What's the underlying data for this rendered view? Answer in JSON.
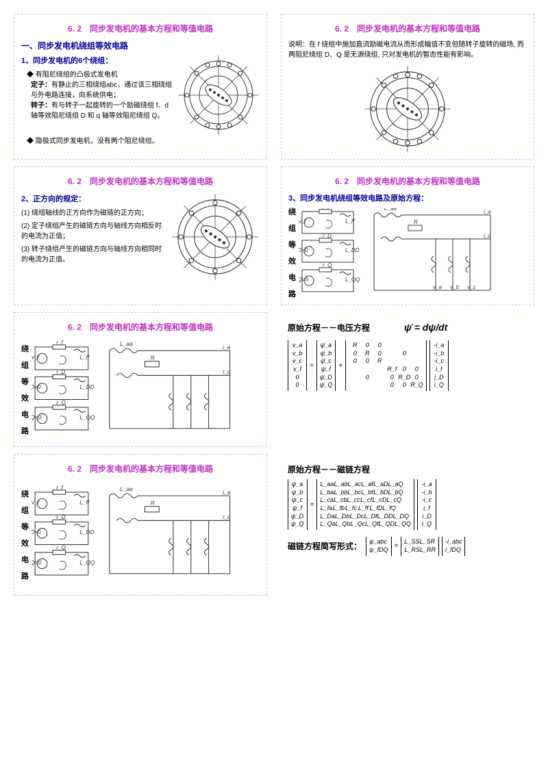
{
  "section_title": "6. 2　同步发电机的基本方程和等值电路",
  "cell1": {
    "heading": "一、同步发电机绕组等效电路",
    "line1": "1、同步发电机的6个绕组：",
    "b1": "◆ 有阻尼绕组的凸极式发电机",
    "stator_label": "定子：",
    "stator_text": "有静止的三相绕组abc，通过该三相绕组与外电路连接，向系统供电；",
    "rotor_label": "转子：",
    "rotor_text": "有与转子一起旋转的一个励磁绕组 f、d 轴等效阻尼绕组 D 和 q 轴等效阻尼绕组 Q。",
    "b2": "◆ 隐极式同步发电机，没有两个阻尼绕组。"
  },
  "cell2": {
    "text": "说明：在 f 绕组中施加直流励磁电流从而形成幅值不变但随转子旋转的磁场, 而两阻尼绕组 D、Q 是无源绕组, 只对发电机的暂态性能有影响。"
  },
  "cell3": {
    "line1": "2、正方向的规定：",
    "p1": "(1) 绕组轴线的正方向作为磁链的正方向；",
    "p2": "(2) 定子绕组产生的磁链方向与轴线方向相反时的电流为正值；",
    "p3": "(3) 转子绕组产生的磁链方向与轴线方向相同时的电流为正值。"
  },
  "cell4": {
    "line1": "3、同步发电机绕组等效电路及原始方程：",
    "side": [
      "绕",
      "组",
      "等",
      "效",
      "电",
      "路"
    ]
  },
  "cell5": {
    "side": [
      "绕",
      "组",
      "等",
      "效",
      "电",
      "路"
    ]
  },
  "cell6": {
    "title": "原始方程－－电压方程",
    "formula": "ψ̇ = dψ/dt",
    "vec_v": [
      "v_a",
      "v_b",
      "v_c",
      "v_f",
      "0",
      "0"
    ],
    "vec_psi": [
      "ψ̇_a",
      "ψ̇_b",
      "ψ̇_c",
      "ψ̇_f",
      "ψ̇_D",
      "ψ̇_Q"
    ],
    "R_rows": [
      [
        "R",
        "0",
        "0",
        "",
        "",
        ""
      ],
      [
        "0",
        "R",
        "0",
        "",
        "0",
        ""
      ],
      [
        "0",
        "0",
        "R",
        "",
        "",
        ""
      ],
      [
        "",
        "",
        "",
        "R_f",
        "0",
        "0"
      ],
      [
        "",
        "0",
        "",
        "0",
        "R_D",
        "0"
      ],
      [
        "",
        "",
        "",
        "0",
        "0",
        "R_Q"
      ]
    ],
    "vec_i": [
      "-i_a",
      "-i_b",
      "-i_c",
      "i_f",
      "i_D",
      "i_Q"
    ]
  },
  "cell7": {
    "side": [
      "绕",
      "组",
      "等",
      "效",
      "电",
      "路"
    ]
  },
  "cell8": {
    "title1": "原始方程－－磁链方程",
    "vec_psi": [
      "ψ_a",
      "ψ_b",
      "ψ_c",
      "ψ_f",
      "ψ_D",
      "ψ_Q"
    ],
    "L_rows": [
      [
        "L_aa",
        "L_ab",
        "L_ac",
        "L_af",
        "L_aD",
        "L_aQ"
      ],
      [
        "L_ba",
        "L_bb",
        "L_bc",
        "L_bf",
        "L_bD",
        "L_bQ"
      ],
      [
        "L_ca",
        "L_cb",
        "L_cc",
        "L_cf",
        "L_cD",
        "L_cQ"
      ],
      [
        "L_fa",
        "L_fb",
        "L_fc",
        "L_ff",
        "L_fD",
        "L_fQ"
      ],
      [
        "L_Da",
        "L_Db",
        "L_Dc",
        "L_Df",
        "L_DD",
        "L_DQ"
      ],
      [
        "L_Qa",
        "L_Qb",
        "L_Qc",
        "L_Qf",
        "L_QD",
        "L_QQ"
      ]
    ],
    "vec_i": [
      "-i_a",
      "-i_b",
      "-i_c",
      "i_f",
      "i_D",
      "i_Q"
    ],
    "title2": "磁链方程简写形式：",
    "block_psi": [
      "ψ_abc",
      "ψ_fDQ"
    ],
    "block_L": [
      [
        "L_SS",
        "L_SR"
      ],
      [
        "L_RS",
        "L_RR"
      ]
    ],
    "block_i": [
      "-i_abc",
      "i_fDQ"
    ]
  },
  "colors": {
    "title": "#c030c0",
    "heading": "#000099",
    "border": "#b0ceff",
    "diagram_stroke": "#333333"
  }
}
